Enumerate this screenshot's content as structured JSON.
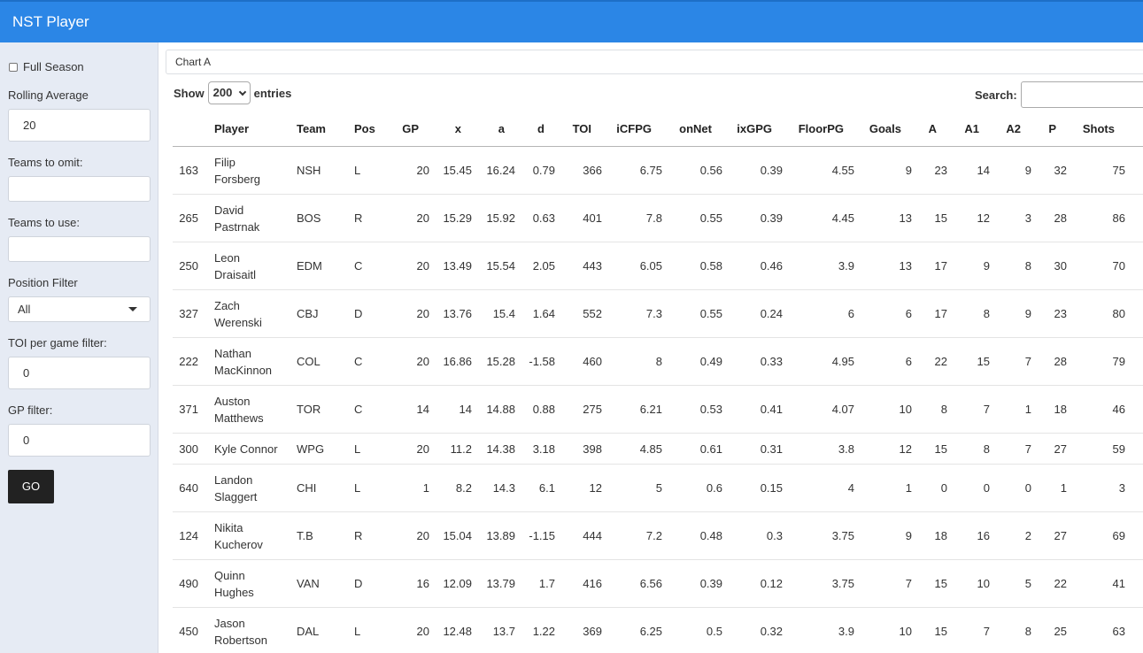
{
  "app": {
    "title": "NST Player"
  },
  "sidebar": {
    "full_season_label": "Full Season",
    "rolling_average_label": "Rolling Average",
    "rolling_average_value": "20",
    "teams_to_omit_label": "Teams to omit:",
    "teams_to_omit_value": "",
    "teams_to_use_label": "Teams to use:",
    "teams_to_use_value": "",
    "position_filter_label": "Position Filter",
    "position_filter_value": "All",
    "toi_filter_label": "TOI per game filter:",
    "toi_filter_value": "0",
    "gp_filter_label": "GP filter:",
    "gp_filter_value": "0",
    "go_label": "GO"
  },
  "main": {
    "tab_label": "Chart A",
    "show_label": "Show",
    "entries_value": "200",
    "entries_label": "entries",
    "search_label": "Search:"
  },
  "table": {
    "columns": [
      "",
      "Player",
      "Team",
      "Pos",
      "GP",
      "x",
      "a",
      "d",
      "TOI",
      "iCFPG",
      "onNet",
      "ixGPG",
      "FloorPG",
      "Goals",
      "A",
      "A1",
      "A2",
      "P",
      "Shots"
    ],
    "sorted_column": "a",
    "sort_direction": "desc",
    "rows": [
      [
        "163",
        "Filip Forsberg",
        "NSH",
        "L",
        "20",
        "15.45",
        "16.24",
        "0.79",
        "366",
        "6.75",
        "0.56",
        "0.39",
        "4.55",
        "9",
        "23",
        "14",
        "9",
        "32",
        "75"
      ],
      [
        "265",
        "David Pastrnak",
        "BOS",
        "R",
        "20",
        "15.29",
        "15.92",
        "0.63",
        "401",
        "7.8",
        "0.55",
        "0.39",
        "4.45",
        "13",
        "15",
        "12",
        "3",
        "28",
        "86"
      ],
      [
        "250",
        "Leon Draisaitl",
        "EDM",
        "C",
        "20",
        "13.49",
        "15.54",
        "2.05",
        "443",
        "6.05",
        "0.58",
        "0.46",
        "3.9",
        "13",
        "17",
        "9",
        "8",
        "30",
        "70"
      ],
      [
        "327",
        "Zach Werenski",
        "CBJ",
        "D",
        "20",
        "13.76",
        "15.4",
        "1.64",
        "552",
        "7.3",
        "0.55",
        "0.24",
        "6",
        "6",
        "17",
        "8",
        "9",
        "23",
        "80"
      ],
      [
        "222",
        "Nathan MacKinnon",
        "COL",
        "C",
        "20",
        "16.86",
        "15.28",
        "-1.58",
        "460",
        "8",
        "0.49",
        "0.33",
        "4.95",
        "6",
        "22",
        "15",
        "7",
        "28",
        "79"
      ],
      [
        "371",
        "Auston Matthews",
        "TOR",
        "C",
        "14",
        "14",
        "14.88",
        "0.88",
        "275",
        "6.21",
        "0.53",
        "0.41",
        "4.07",
        "10",
        "8",
        "7",
        "1",
        "18",
        "46"
      ],
      [
        "300",
        "Kyle Connor",
        "WPG",
        "L",
        "20",
        "11.2",
        "14.38",
        "3.18",
        "398",
        "4.85",
        "0.61",
        "0.31",
        "3.8",
        "12",
        "15",
        "8",
        "7",
        "27",
        "59"
      ],
      [
        "640",
        "Landon Slaggert",
        "CHI",
        "L",
        "1",
        "8.2",
        "14.3",
        "6.1",
        "12",
        "5",
        "0.6",
        "0.15",
        "4",
        "1",
        "0",
        "0",
        "0",
        "1",
        "3"
      ],
      [
        "124",
        "Nikita Kucherov",
        "T.B",
        "R",
        "20",
        "15.04",
        "13.89",
        "-1.15",
        "444",
        "7.2",
        "0.48",
        "0.3",
        "3.75",
        "9",
        "18",
        "16",
        "2",
        "27",
        "69"
      ],
      [
        "490",
        "Quinn Hughes",
        "VAN",
        "D",
        "16",
        "12.09",
        "13.79",
        "1.7",
        "416",
        "6.56",
        "0.39",
        "0.12",
        "3.75",
        "7",
        "15",
        "10",
        "5",
        "22",
        "41"
      ],
      [
        "450",
        "Jason Robertson",
        "DAL",
        "L",
        "20",
        "12.48",
        "13.7",
        "1.22",
        "369",
        "6.25",
        "0.5",
        "0.32",
        "3.9",
        "10",
        "15",
        "7",
        "8",
        "25",
        "63"
      ]
    ]
  }
}
